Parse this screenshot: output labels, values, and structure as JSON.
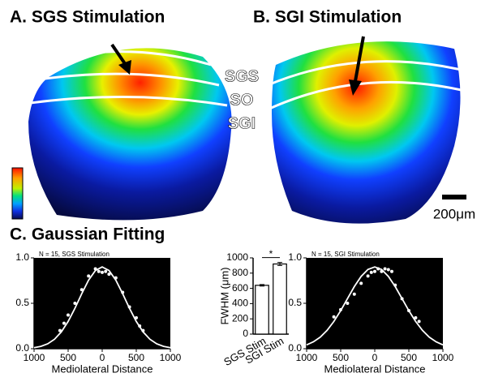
{
  "figure": {
    "panel_a": "A. SGS Stimulation",
    "panel_b": "B. SGI Stimulation",
    "layers": [
      "SGS",
      "SO",
      "SGI"
    ],
    "scale_bar": "200μm",
    "panel_c": "C. Gaussian Fitting"
  },
  "chart_data": [
    {
      "type": "scatter",
      "annotation": "N = 15, SGS Stimulation",
      "xlabel": "Mediolateral Distance",
      "xlim": [
        -1000,
        1000
      ],
      "xticks": [
        {
          "value": -1000,
          "label": "1000"
        },
        {
          "value": -500,
          "label": "500"
        },
        0,
        500,
        1000
      ],
      "ylim": [
        0,
        1
      ],
      "yticks": [
        {
          "value": 0,
          "label": "0.0"
        },
        0.5,
        {
          "value": 1,
          "label": "1.0"
        }
      ],
      "series": [
        {
          "mode": "markers",
          "color": "#ffffff",
          "x": [
            -620,
            -560,
            -500,
            -400,
            -300,
            -200,
            -100,
            -50,
            0,
            50,
            100,
            200,
            300,
            400,
            500,
            550,
            600
          ],
          "values": [
            0.2,
            0.28,
            0.37,
            0.5,
            0.65,
            0.8,
            0.88,
            0.85,
            0.84,
            0.85,
            0.82,
            0.78,
            0.62,
            0.46,
            0.34,
            0.25,
            0.2
          ]
        },
        {
          "mode": "line",
          "color": "#ffffff",
          "x": [
            -1000,
            -900,
            -800,
            -700,
            -600,
            -500,
            -400,
            -300,
            -200,
            -100,
            0,
            100,
            200,
            300,
            400,
            500,
            600,
            700,
            800,
            900,
            1000
          ],
          "values": [
            0.011,
            0.026,
            0.054,
            0.104,
            0.185,
            0.3,
            0.445,
            0.606,
            0.755,
            0.861,
            0.9,
            0.861,
            0.755,
            0.606,
            0.445,
            0.3,
            0.185,
            0.104,
            0.054,
            0.026,
            0.011
          ]
        }
      ]
    },
    {
      "type": "bar",
      "ylabel": "FWHM (μm)",
      "annotation": "*",
      "categories": [
        "SGS Stim",
        "SGI Stim"
      ],
      "values": [
        640,
        920
      ],
      "errors": [
        10,
        20
      ],
      "color": "#ffffff",
      "ylim": [
        0,
        1000
      ],
      "yticks": [
        0,
        200,
        400,
        600,
        800,
        1000
      ]
    },
    {
      "type": "scatter",
      "annotation": "N = 15, SGI Stimulation",
      "xlabel": "Mediolateral Distance",
      "xlim": [
        -1000,
        1000
      ],
      "xticks": [
        {
          "value": -1000,
          "label": "1000"
        },
        {
          "value": -500,
          "label": "500"
        },
        0,
        500,
        1000
      ],
      "ylim": [
        0,
        1
      ],
      "yticks": [
        {
          "value": 0,
          "label": "0.0"
        },
        0.5,
        {
          "value": 1,
          "label": "1.0"
        }
      ],
      "series": [
        {
          "mode": "markers",
          "color": "#ffffff",
          "x": [
            -600,
            -500,
            -400,
            -300,
            -200,
            -100,
            -50,
            0,
            50,
            100,
            150,
            200,
            250,
            300,
            400,
            500,
            600,
            650
          ],
          "values": [
            0.35,
            0.43,
            0.5,
            0.6,
            0.72,
            0.8,
            0.84,
            0.85,
            0.88,
            0.85,
            0.88,
            0.87,
            0.85,
            0.7,
            0.55,
            0.42,
            0.34,
            0.3
          ]
        },
        {
          "mode": "line",
          "color": "#ffffff",
          "x": [
            -1000,
            -900,
            -800,
            -700,
            -600,
            -500,
            -400,
            -300,
            -200,
            -100,
            0,
            100,
            200,
            300,
            400,
            500,
            600,
            700,
            800,
            900,
            1000
          ],
          "values": [
            0.042,
            0.076,
            0.127,
            0.202,
            0.3,
            0.419,
            0.552,
            0.684,
            0.796,
            0.873,
            0.9,
            0.873,
            0.796,
            0.684,
            0.552,
            0.419,
            0.3,
            0.202,
            0.127,
            0.076,
            0.042
          ]
        }
      ]
    }
  ]
}
